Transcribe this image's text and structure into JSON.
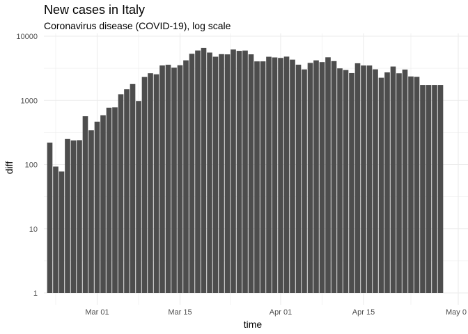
{
  "chart_data": {
    "type": "bar",
    "title": "New cases in Italy",
    "subtitle": "Coronavirus disease (COVID-19), log scale",
    "xlabel": "time",
    "ylabel": "diff",
    "y_scale": "log10",
    "ylim": [
      1,
      10000
    ],
    "y_ticks": [
      1,
      10,
      100,
      1000,
      10000
    ],
    "y_tick_labels": [
      "1",
      "10",
      "100",
      "1000",
      "10000"
    ],
    "x_range": [
      "2020-02-17",
      "2020-05-01"
    ],
    "x_ticks": [
      "2020-03-01",
      "2020-03-15",
      "2020-04-01",
      "2020-04-15",
      "2020-05-01"
    ],
    "x_tick_labels": [
      "Mar 01",
      "Mar 15",
      "Apr 01",
      "Apr 15",
      "May 0"
    ],
    "grid": true,
    "bar_color": "#4d4d4d",
    "grid_color": "#ebebeb",
    "dates": [
      "2020-02-22",
      "2020-02-23",
      "2020-02-24",
      "2020-02-25",
      "2020-02-26",
      "2020-02-27",
      "2020-02-28",
      "2020-02-29",
      "2020-03-01",
      "2020-03-02",
      "2020-03-03",
      "2020-03-04",
      "2020-03-05",
      "2020-03-06",
      "2020-03-07",
      "2020-03-08",
      "2020-03-09",
      "2020-03-10",
      "2020-03-11",
      "2020-03-12",
      "2020-03-13",
      "2020-03-14",
      "2020-03-15",
      "2020-03-16",
      "2020-03-17",
      "2020-03-18",
      "2020-03-19",
      "2020-03-20",
      "2020-03-21",
      "2020-03-22",
      "2020-03-23",
      "2020-03-24",
      "2020-03-25",
      "2020-03-26",
      "2020-03-27",
      "2020-03-28",
      "2020-03-29",
      "2020-03-30",
      "2020-03-31",
      "2020-04-01",
      "2020-04-02",
      "2020-04-03",
      "2020-04-04",
      "2020-04-05",
      "2020-04-06",
      "2020-04-07",
      "2020-04-08",
      "2020-04-09",
      "2020-04-10",
      "2020-04-11",
      "2020-04-12",
      "2020-04-13",
      "2020-04-14",
      "2020-04-15",
      "2020-04-16",
      "2020-04-17",
      "2020-04-18",
      "2020-04-19",
      "2020-04-20",
      "2020-04-21",
      "2020-04-22",
      "2020-04-23",
      "2020-04-24",
      "2020-04-25",
      "2020-04-26",
      "2020-04-27",
      "2020-04-28"
    ],
    "values": [
      220,
      93,
      78,
      250,
      238,
      240,
      566,
      342,
      466,
      587,
      769,
      778,
      1247,
      1492,
      1797,
      977,
      2313,
      2651,
      2547,
      3497,
      3590,
      3233,
      3526,
      4207,
      5322,
      5986,
      6557,
      5560,
      4789,
      5249,
      5210,
      6203,
      5909,
      5974,
      5217,
      4050,
      4053,
      4782,
      4668,
      4585,
      4805,
      4316,
      3599,
      3039,
      3836,
      4204,
      3951,
      4694,
      4092,
      3153,
      2972,
      2667,
      3786,
      3493,
      3491,
      3047,
      2256,
      2729,
      3370,
      2646,
      3021,
      2357,
      2324,
      1739,
      1739,
      1739,
      1739
    ],
    "series": [
      {
        "values_ref": "values"
      }
    ]
  }
}
